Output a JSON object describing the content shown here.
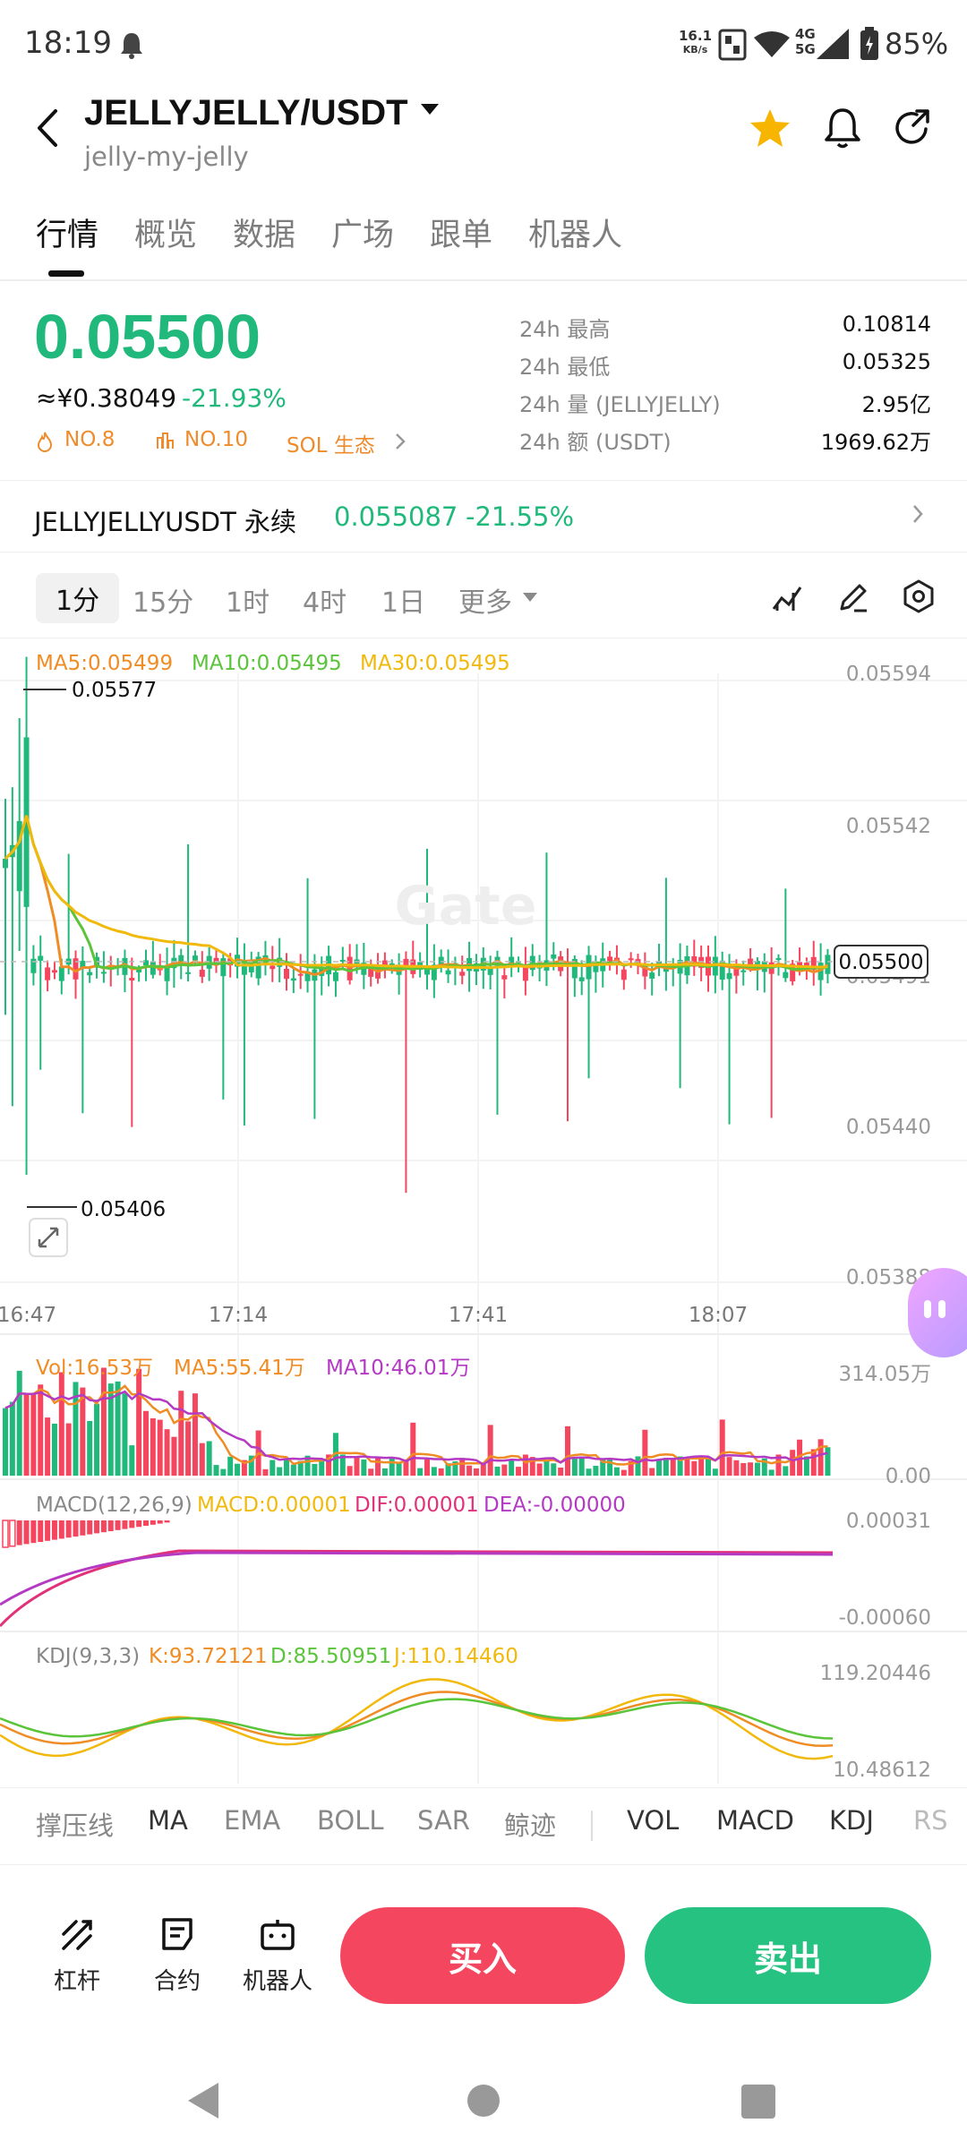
{
  "status": {
    "time": "18:19",
    "netspeed_top": "16.1",
    "netspeed_bottom": "KB/s",
    "network": "4G\n5G",
    "battery": "85%"
  },
  "header": {
    "pair": "JELLYJELLY/USDT",
    "subtitle": "jelly-my-jelly",
    "icons": [
      "back-icon",
      "star-icon",
      "bell-icon",
      "share-icon"
    ]
  },
  "tabs": [
    "行情",
    "概览",
    "数据",
    "广场",
    "跟单",
    "机器人"
  ],
  "ticker": {
    "price": "0.05500",
    "cny": "≈¥0.38049",
    "change": "-21.93%",
    "tags": [
      "NO.8",
      "NO.10",
      "SOL 生态"
    ],
    "stats": [
      {
        "label": "24h  最高",
        "value": "0.10814"
      },
      {
        "label": "24h  最低",
        "value": "0.05325"
      },
      {
        "label": "24h  量 (JELLYJELLY)",
        "value": "2.95亿"
      },
      {
        "label": "24h  额 (USDT)",
        "value": "1969.62万"
      }
    ]
  },
  "perpetual": {
    "name": "JELLYJELLYUSDT 永续",
    "price": "0.055087",
    "change": "-21.55%"
  },
  "timeframes": [
    "1分",
    "15分",
    "1时",
    "4时",
    "1日",
    "更多"
  ],
  "legend_ma": {
    "ma5": "MA5:0.05499",
    "ma10": "MA10:0.05495",
    "ma30": "MA30:0.05495"
  },
  "legend_vol": {
    "vol": "Vol:16.53万",
    "ma5": "MA5:55.41万",
    "ma10": "MA10:46.01万"
  },
  "legend_macd": {
    "title": "MACD(12,26,9)",
    "macd": "MACD:0.00001",
    "dif": "DIF:0.00001",
    "dea": "DEA:-0.00000"
  },
  "legend_kdj": {
    "title": "KDJ(9,3,3)",
    "k": "K:93.72121",
    "d": "D:85.50951",
    "j": "J:110.14460"
  },
  "chart_data": {
    "type": "candlestick",
    "y_ticks": [
      "0.05594",
      "0.05542",
      "0.05491",
      "0.05440",
      "0.05388"
    ],
    "x_ticks": [
      "16:47",
      "17:14",
      "17:41",
      "18:07"
    ],
    "high_label": "0.05577",
    "low_label": "0.05406",
    "last_price_label": "0.05500",
    "vol_ticks": [
      "314.05万",
      "0.00"
    ],
    "macd_ticks": [
      "0.00031",
      "-0.00060"
    ],
    "kdj_ticks": [
      "119.20446",
      "10.48612"
    ]
  },
  "indicator_tabs": [
    "撑压线",
    "MA",
    "EMA",
    "BOLL",
    "SAR",
    "鲸迹",
    "VOL",
    "MACD",
    "KDJ",
    "RS"
  ],
  "actions": {
    "leverage": "杠杆",
    "contract": "合约",
    "bot": "机器人",
    "buy": "买入",
    "sell": "卖出"
  },
  "colors": {
    "up": "#20b97b",
    "down": "#f5465f",
    "ma5": "#f08c24",
    "ma10": "#5ac43a",
    "ma30": "#f2b90d"
  }
}
